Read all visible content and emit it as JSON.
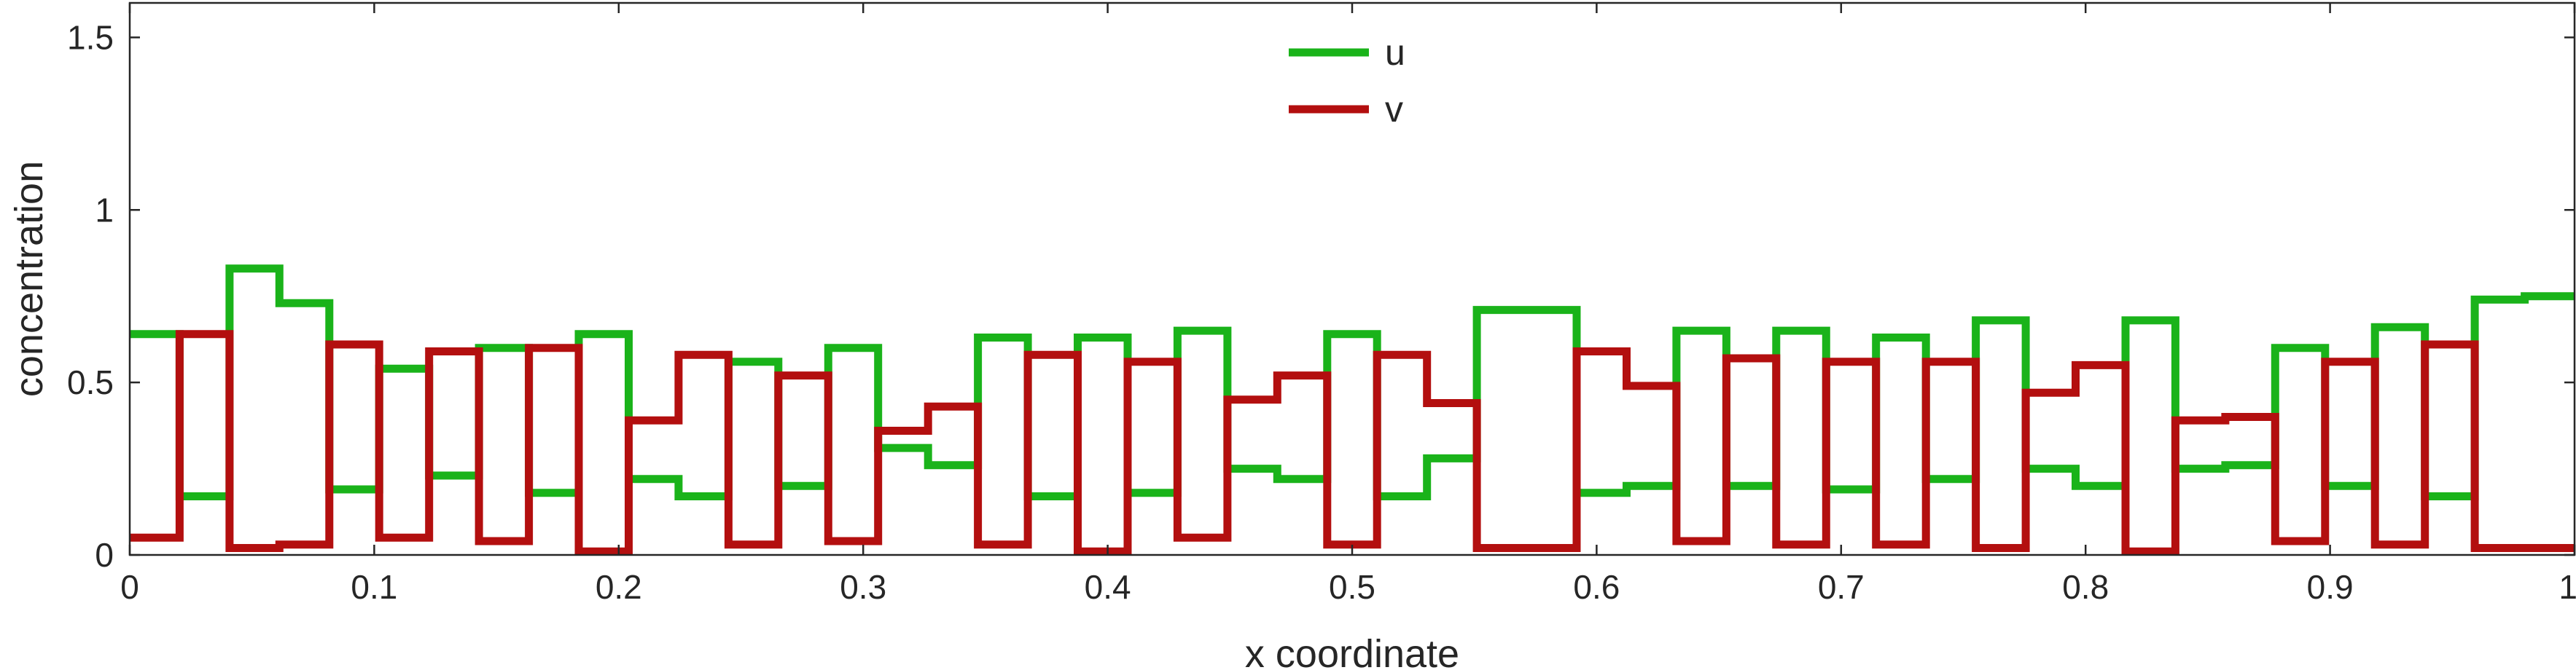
{
  "colors": {
    "u": "#1ab31a",
    "v": "#b30f0f",
    "axis": "#262626",
    "background": "#ffffff"
  },
  "chart_data": {
    "type": "line",
    "step": true,
    "xlabel": "x coordinate",
    "ylabel": "concentration",
    "xlim": [
      0,
      1
    ],
    "ylim": [
      0,
      1.6
    ],
    "grid": false,
    "legend_position": "top-center",
    "x_ticks": [
      0,
      0.1,
      0.2,
      0.3,
      0.4,
      0.5,
      0.6,
      0.7,
      0.8,
      0.9,
      1
    ],
    "x_tick_labels": [
      "0",
      "0.1",
      "0.2",
      "0.3",
      "0.4",
      "0.5",
      "0.6",
      "0.7",
      "0.8",
      "0.9",
      "1"
    ],
    "y_ticks": [
      0,
      0.5,
      1,
      1.5
    ],
    "y_tick_labels": [
      "0",
      "0.5",
      "1",
      "1.5"
    ],
    "bin_width": 0.02041,
    "series": [
      {
        "name": "u",
        "values": [
          0.64,
          0.17,
          0.83,
          0.73,
          0.19,
          0.54,
          0.23,
          0.6,
          0.18,
          0.64,
          0.22,
          0.17,
          0.56,
          0.2,
          0.6,
          0.31,
          0.26,
          0.63,
          0.17,
          0.63,
          0.18,
          0.65,
          0.25,
          0.22,
          0.64,
          0.17,
          0.28,
          0.71,
          0.71,
          0.18,
          0.2,
          0.65,
          0.2,
          0.65,
          0.19,
          0.63,
          0.22,
          0.68,
          0.25,
          0.2,
          0.68,
          0.25,
          0.26,
          0.6,
          0.2,
          0.66,
          0.17,
          0.74,
          0.75
        ]
      },
      {
        "name": "v",
        "values": [
          0.05,
          0.64,
          0.02,
          0.03,
          0.61,
          0.05,
          0.59,
          0.04,
          0.6,
          0.01,
          0.39,
          0.58,
          0.03,
          0.52,
          0.04,
          0.36,
          0.43,
          0.03,
          0.58,
          0.01,
          0.56,
          0.05,
          0.45,
          0.52,
          0.03,
          0.58,
          0.44,
          0.02,
          0.02,
          0.59,
          0.49,
          0.04,
          0.57,
          0.03,
          0.56,
          0.03,
          0.56,
          0.02,
          0.47,
          0.55,
          0.01,
          0.39,
          0.4,
          0.04,
          0.56,
          0.03,
          0.61,
          0.02,
          0.02
        ]
      }
    ]
  }
}
